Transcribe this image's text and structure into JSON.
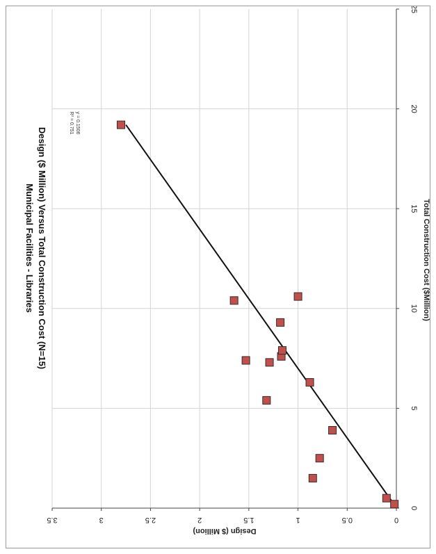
{
  "chart_data": {
    "type": "scatter",
    "title": "Municipal Facilities - Libraries",
    "subtitle": "Design ($ Million) Versus Total Construction Cost (N=15)",
    "xlabel": "Total Construction Cost ($Million)",
    "ylabel": "Design ($ Million)",
    "xlim": [
      0,
      25
    ],
    "ylim": [
      0,
      3.5
    ],
    "x_ticks": [
      "0",
      "5",
      "10",
      "15",
      "20",
      "25"
    ],
    "y_ticks": [
      "0",
      "0.5",
      "1",
      "1.5",
      "2",
      "2.5",
      "3",
      "3.5"
    ],
    "grid": true,
    "marker_color": "#c0504d",
    "points": [
      {
        "x": 0.2,
        "y": 0.02
      },
      {
        "x": 0.5,
        "y": 0.1
      },
      {
        "x": 1.5,
        "y": 0.85
      },
      {
        "x": 2.5,
        "y": 0.78
      },
      {
        "x": 3.9,
        "y": 0.65
      },
      {
        "x": 5.4,
        "y": 1.32
      },
      {
        "x": 6.3,
        "y": 0.88
      },
      {
        "x": 7.3,
        "y": 1.29
      },
      {
        "x": 7.4,
        "y": 1.53
      },
      {
        "x": 7.6,
        "y": 1.17
      },
      {
        "x": 7.9,
        "y": 1.16
      },
      {
        "x": 9.3,
        "y": 1.18
      },
      {
        "x": 10.4,
        "y": 1.65
      },
      {
        "x": 10.6,
        "y": 1.0
      },
      {
        "x": 19.2,
        "y": 2.8
      }
    ],
    "trendline": {
      "x": [
        0.3,
        19.2
      ],
      "y": [
        0.04,
        2.75
      ]
    },
    "equation_lines": [
      "y = 0.1506",
      "R² = 0.751"
    ]
  }
}
